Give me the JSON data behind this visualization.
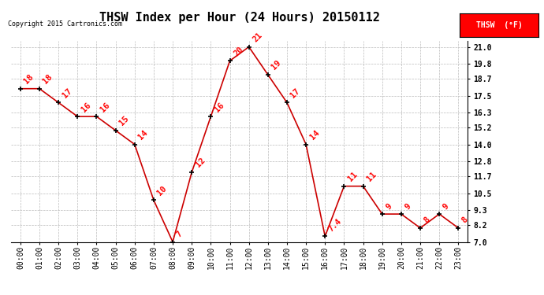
{
  "title": "THSW Index per Hour (24 Hours) 20150112",
  "copyright": "Copyright 2015 Cartronics.com",
  "legend_label": "THSW  (°F)",
  "hours": [
    0,
    1,
    2,
    3,
    4,
    5,
    6,
    7,
    8,
    9,
    10,
    11,
    12,
    13,
    14,
    15,
    16,
    17,
    18,
    19,
    20,
    21,
    22,
    23
  ],
  "values": [
    18,
    18,
    17,
    16,
    16,
    15,
    14,
    10,
    7,
    12,
    16,
    20,
    21,
    19,
    17,
    14,
    7.4,
    11,
    11,
    9,
    9,
    8,
    9,
    8
  ],
  "ann_labels": [
    "18",
    "18",
    "17",
    "16",
    "16",
    "15",
    "14",
    "10",
    "7",
    "12",
    "16",
    "20",
    "21",
    "19",
    "17",
    "14",
    "7.4",
    "11",
    "11",
    "9",
    "9",
    "8",
    "9",
    "8"
  ],
  "hour_labels": [
    "00:00",
    "01:00",
    "02:00",
    "03:00",
    "04:00",
    "05:00",
    "06:00",
    "07:00",
    "08:00",
    "09:00",
    "10:00",
    "11:00",
    "12:00",
    "13:00",
    "14:00",
    "15:00",
    "16:00",
    "17:00",
    "18:00",
    "19:00",
    "20:00",
    "21:00",
    "22:00",
    "23:00"
  ],
  "ylim": [
    7.0,
    21.4
  ],
  "yticks": [
    7.0,
    8.2,
    9.3,
    10.5,
    11.7,
    12.8,
    14.0,
    15.2,
    16.3,
    17.5,
    18.7,
    19.8,
    21.0
  ],
  "line_color": "#cc0000",
  "marker_color": "black",
  "background_color": "#ffffff",
  "plot_bg_color": "#ffffff",
  "grid_color": "#bbbbbb",
  "title_fontsize": 11,
  "label_fontsize": 7,
  "annotation_fontsize": 7.5,
  "annotation_color": "red",
  "legend_bg": "red",
  "legend_text_color": "white"
}
